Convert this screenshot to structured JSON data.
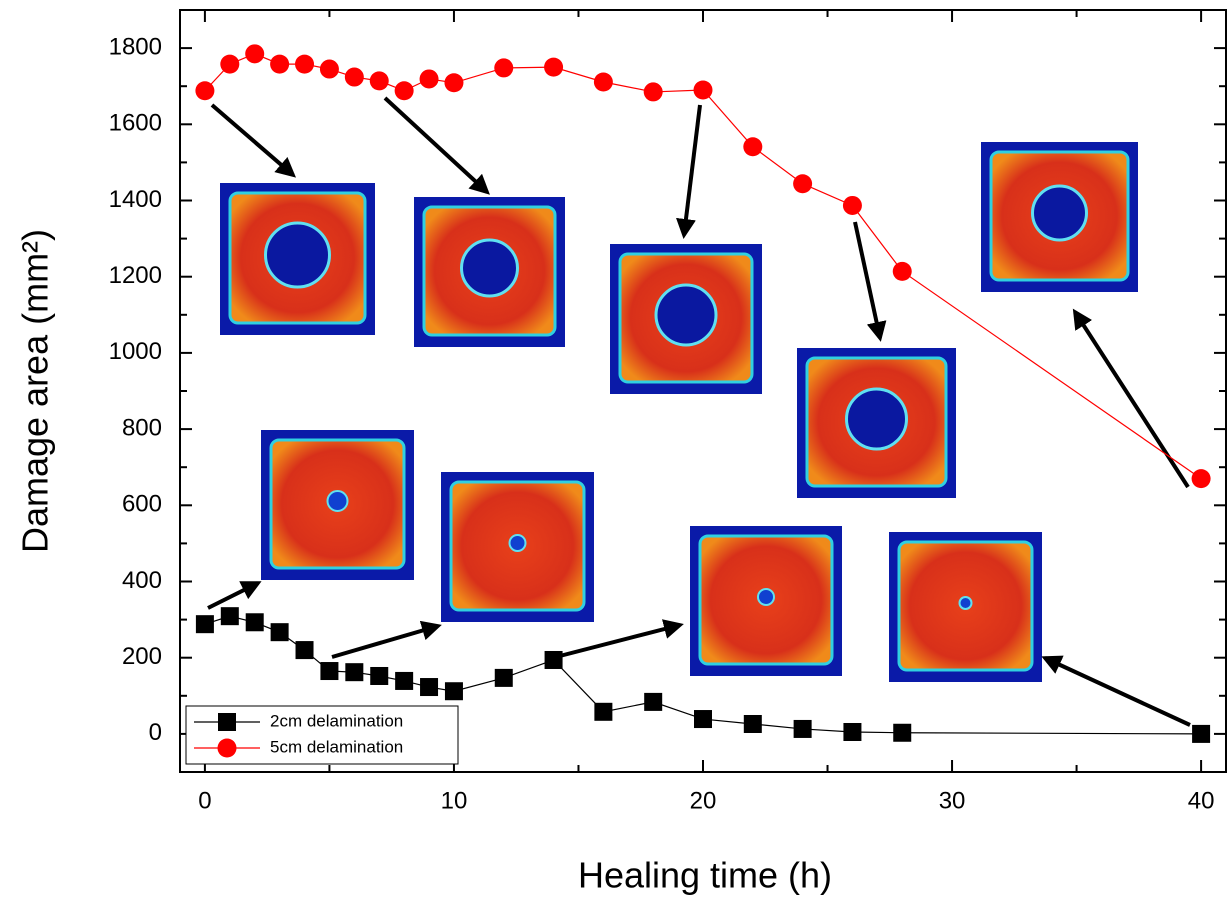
{
  "chart_data": {
    "type": "line",
    "x_label": "Healing time (h)",
    "y_label": "Damage area (mm²)",
    "xlim": [
      -1,
      41
    ],
    "ylim": [
      -100,
      1900
    ],
    "xticks": [
      0,
      10,
      20,
      30,
      40
    ],
    "yticks": [
      0,
      200,
      400,
      600,
      800,
      1000,
      1200,
      1400,
      1600,
      1800
    ],
    "xminorticks": [
      5,
      15,
      25,
      35
    ],
    "yminorticks": [
      100,
      300,
      500,
      700,
      900,
      1100,
      1300,
      1500,
      1700
    ],
    "legend": "lower left",
    "series": [
      {
        "name": "2cm delamination",
        "color": "#000000",
        "marker": "square",
        "x": [
          0,
          1,
          2,
          3,
          4,
          5,
          6,
          7,
          8,
          9,
          10,
          12,
          14,
          16,
          18,
          20,
          22,
          24,
          26,
          28,
          40
        ],
        "values": [
          288,
          309,
          293,
          267,
          220,
          165,
          162,
          152,
          139,
          123,
          112,
          147,
          194,
          58,
          84,
          39,
          26,
          13,
          5,
          3,
          0
        ]
      },
      {
        "name": "5cm delamination",
        "color": "#ff0000",
        "marker": "circle",
        "x": [
          0,
          1,
          2,
          3,
          4,
          5,
          6,
          7,
          8,
          9,
          10,
          12,
          14,
          16,
          18,
          20,
          22,
          24,
          26,
          28,
          40
        ],
        "values": [
          1688,
          1758,
          1785,
          1758,
          1758,
          1745,
          1724,
          1714,
          1688,
          1719,
          1709,
          1748,
          1750,
          1711,
          1685,
          1690,
          1541,
          1444,
          1387,
          1214,
          670
        ]
      }
    ]
  }
}
